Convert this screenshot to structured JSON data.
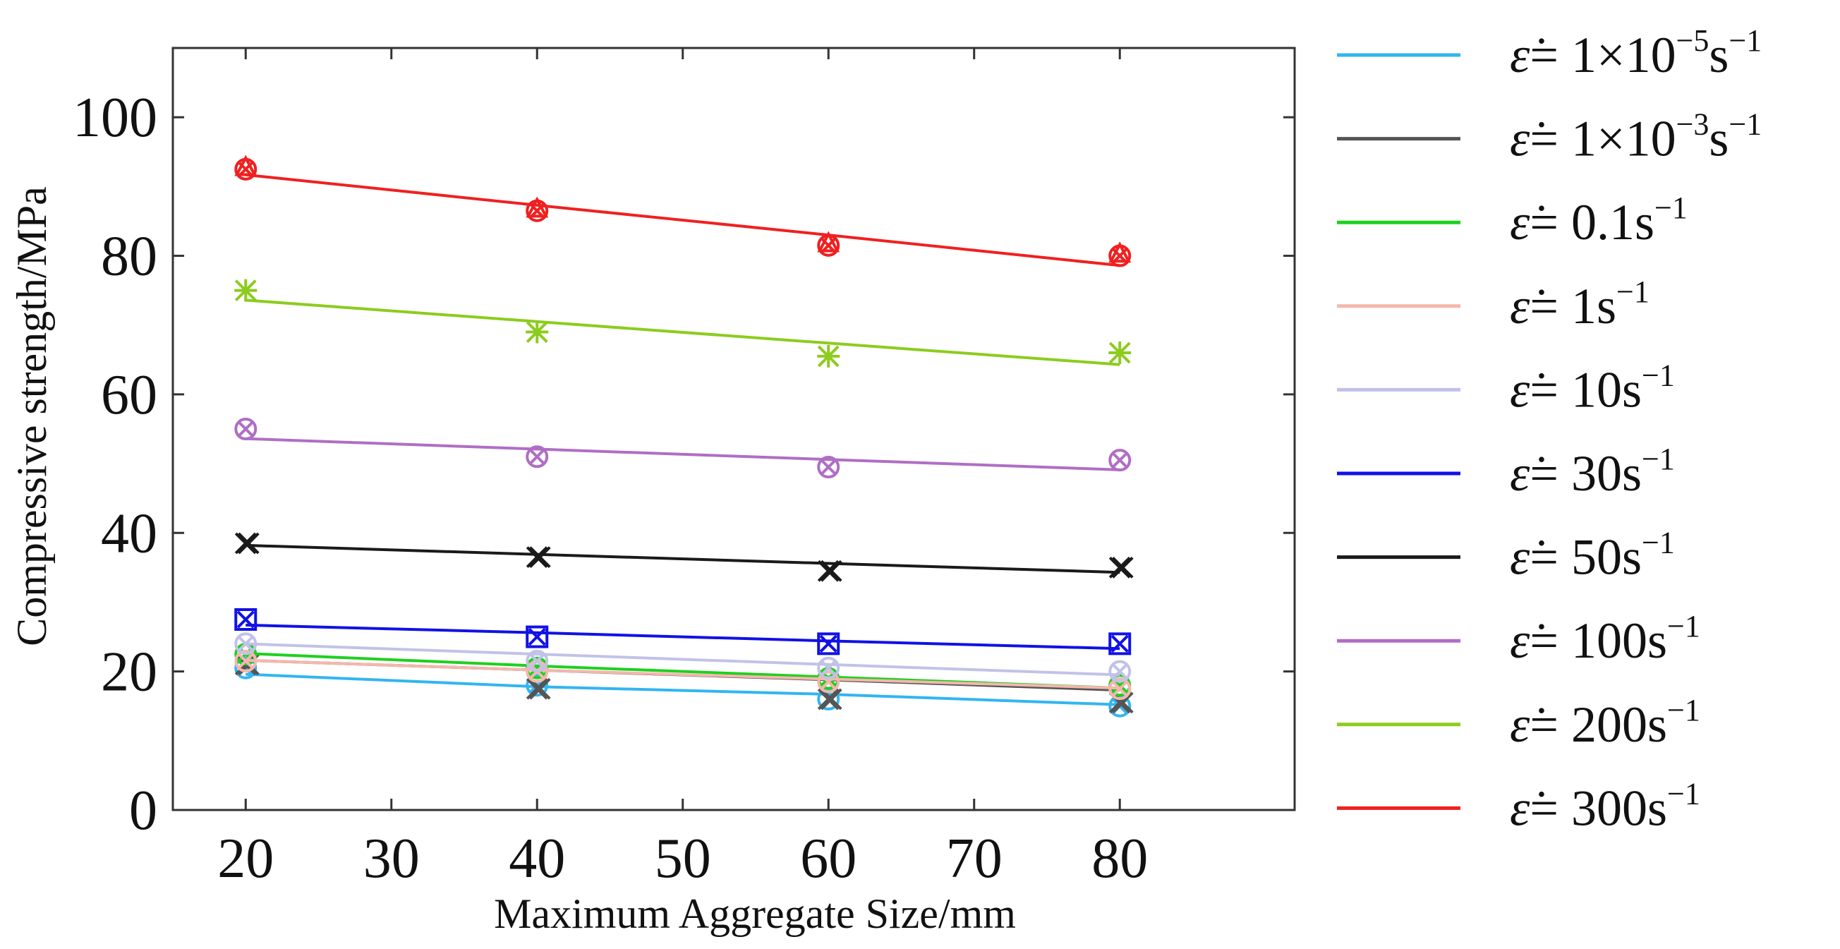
{
  "chart_data": {
    "type": "line",
    "title": "",
    "xlabel": "Maximum  Aggregate  Size/mm",
    "ylabel": "Compressive strength/MPa",
    "xlim": [
      15,
      92
    ],
    "ylim": [
      0,
      110
    ],
    "xticks": [
      20,
      30,
      40,
      50,
      60,
      70,
      80
    ],
    "yticks": [
      0,
      20,
      40,
      60,
      80,
      100
    ],
    "grid": false,
    "legend_position": "right",
    "x": [
      20,
      40,
      60,
      80
    ],
    "series": [
      {
        "name": "ε̇ = 1×10⁻⁵s⁻¹",
        "legend_pre": "= 1×10",
        "legend_exp": "−5",
        "legend_unit": "s",
        "legend_unit_exp": "−1",
        "color": "#33b5f0",
        "marker": "circle-x",
        "values": [
          20.5,
          18,
          16,
          15
        ],
        "fit": [
          19.6,
          17.8,
          16.7,
          15.2
        ]
      },
      {
        "name": "ε̇ = 1×10⁻³s⁻¹",
        "legend_pre": "= 1×10",
        "legend_exp": "−3",
        "legend_unit": "s",
        "legend_unit_exp": "−1",
        "color": "#555555",
        "marker": "x",
        "values": [
          21,
          17.5,
          16,
          15.5
        ],
        "fit": [
          21.6,
          20.2,
          18.8,
          17.3
        ]
      },
      {
        "name": "ε̇ = 0.1s⁻¹",
        "legend_pre": "= 0.1",
        "legend_exp": "",
        "legend_unit": "s",
        "legend_unit_exp": "−1",
        "color": "#1fd01f",
        "marker": "circle-x",
        "values": [
          22.5,
          20.5,
          19,
          18
        ],
        "fit": [
          22.6,
          20.8,
          19.2,
          17.6
        ]
      },
      {
        "name": "ε̇ = 1s⁻¹",
        "legend_pre": "= 1",
        "legend_exp": "",
        "legend_unit": "s",
        "legend_unit_exp": "−1",
        "color": "#f4b7ad",
        "marker": "circle-x",
        "values": [
          21.5,
          20,
          18.5,
          17.5
        ],
        "fit": [
          21.6,
          20.2,
          18.9,
          17.6
        ]
      },
      {
        "name": "ε̇ = 10s⁻¹",
        "legend_pre": "= 10",
        "legend_exp": "",
        "legend_unit": "s",
        "legend_unit_exp": "−1",
        "color": "#c2c2e8",
        "marker": "circle-x",
        "values": [
          24,
          21.5,
          20.5,
          20
        ],
        "fit": [
          24,
          22.5,
          21,
          19.5
        ]
      },
      {
        "name": "ε̇ = 30s⁻¹",
        "legend_pre": "= 30",
        "legend_exp": "",
        "legend_unit": "s",
        "legend_unit_exp": "−1",
        "color": "#1111e6",
        "marker": "square-x",
        "values": [
          27.5,
          25,
          24,
          24
        ],
        "fit": [
          26.7,
          25.6,
          24.4,
          23.3
        ]
      },
      {
        "name": "ε̇ = 50s⁻¹",
        "legend_pre": "= 50",
        "legend_exp": "",
        "legend_unit": "s",
        "legend_unit_exp": "−1",
        "color": "#1a1a1a",
        "marker": "x",
        "values": [
          38.5,
          36.5,
          34.5,
          35
        ],
        "fit": [
          38.2,
          36.9,
          35.6,
          34.3
        ]
      },
      {
        "name": "ε̇ = 100s⁻¹",
        "legend_pre": "= 100",
        "legend_exp": "",
        "legend_unit": "s",
        "legend_unit_exp": "−1",
        "color": "#b06ec4",
        "marker": "circle-x",
        "values": [
          55,
          51,
          49.5,
          50.5
        ],
        "fit": [
          53.6,
          52.1,
          50.6,
          49.1
        ]
      },
      {
        "name": "ε̇ = 200s⁻¹",
        "legend_pre": "= 200",
        "legend_exp": "",
        "legend_unit": "s",
        "legend_unit_exp": "−1",
        "color": "#8ccc1e",
        "marker": "asterisk",
        "values": [
          75,
          69,
          65.5,
          66
        ],
        "fit": [
          73.6,
          70.5,
          67.4,
          64.3
        ]
      },
      {
        "name": "ε̇ = 300s⁻¹",
        "legend_pre": "= 300",
        "legend_exp": "",
        "legend_unit": "s",
        "legend_unit_exp": "−1",
        "color": "#f02020",
        "marker": "star-circle",
        "values": [
          92.5,
          86.5,
          81.5,
          80
        ],
        "fit": [
          91.7,
          87.3,
          83,
          78.6
        ]
      }
    ]
  }
}
